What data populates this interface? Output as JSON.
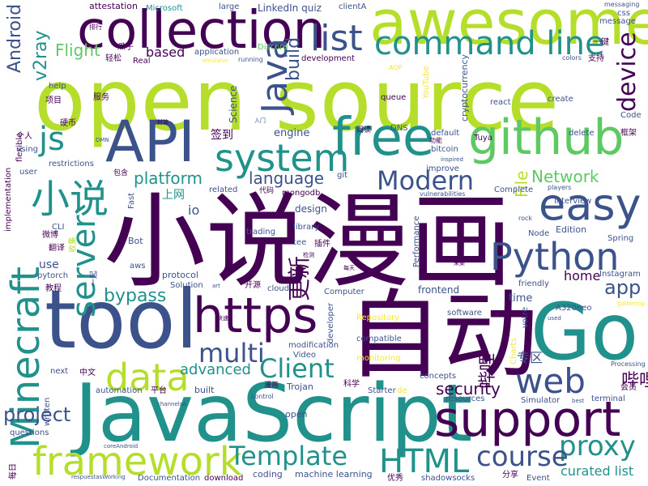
{
  "palette": {
    "dark_purple": "#440154",
    "indigo": "#3b528b",
    "teal": "#21918c",
    "green": "#5ec962",
    "lime": "#b5de2b",
    "yellow": "#fde725"
  },
  "words": {
    "open_source": "open source",
    "javascript": "JavaScript",
    "manhua": "小说漫画",
    "tool": "tool",
    "go": "Go",
    "zidong": "自动",
    "awesome": "awesome",
    "collection": "collection",
    "api": "API",
    "github": "github",
    "free": "free",
    "system": "system",
    "https": "https",
    "support": "support",
    "framework": "framework",
    "minecraft": "Minecraft",
    "python": "Python",
    "easy": "easy",
    "list": "list",
    "command_line": "command line",
    "web": "web",
    "data": "data",
    "proxy": "proxy",
    "template": "Template",
    "html": "HTML",
    "client": "Client",
    "multi": "multi",
    "course": "course",
    "server": "server",
    "java": "Java",
    "xiaoshuo": "小说",
    "modern": "Modern",
    "device": "device",
    "bypass": "bypass",
    "project": "project",
    "security": "security",
    "app": "app",
    "v2ray": "v2ray",
    "android": "Android",
    "flight": "Flight",
    "build": "build",
    "js": "js",
    "platform": "platform",
    "language": "language",
    "network": "Network",
    "gengxin": "更新",
    "advanced": "advanced",
    "curated_list": "curated list",
    "bilibili": "哔哩",
    "home": "home",
    "file": "File",
    "based": "based",
    "linkedin_quiz": "LinkedIn quiz",
    "zhuanqu": "专区",
    "engine": "engine",
    "qiandao": "签到",
    "shangwang": "上网",
    "time": "time",
    "use": "use",
    "microsoft": "Microsoft",
    "attestation": "attestation",
    "large": "large",
    "clienta": "clientA",
    "css": "css",
    "message": "message",
    "messaging": "messaging",
    "yijian": "一键",
    "zhichi": "支持",
    "colors": "colors",
    "discord": "Discord",
    "application": "application",
    "running": "running",
    "development": "development",
    "real": "Real",
    "emulator": "emulator",
    "aop": "AOP",
    "qingsong": "轻松",
    "guazi": "瓜子",
    "paihang": "排行",
    "fuwu": "服务",
    "xiangmu": "项目",
    "help": "help",
    "science": "Science",
    "queue": "queue",
    "youtube": "YouTube",
    "cryptocurrency": "cryptocurrency",
    "react": "react",
    "create": "create",
    "edition": "Edition",
    "code": "Code",
    "kuangjia": "框架",
    "delete": "delete",
    "tuya": "Tuya",
    "default": "default",
    "bitcoin": "bitcoin",
    "improve": "improve",
    "inspired": "inspired",
    "dns": "DNS",
    "yuedu": "阅读",
    "gongneng": "功能",
    "yingbi": "硬币",
    "geren": "个人",
    "dmn": "DMN",
    "flexible": "flexible",
    "implementation": "implementation",
    "restrictions": "restrictions",
    "using": "using",
    "user": "user",
    "baohan": "包含",
    "git": "git",
    "related": "related",
    "mongodb": "mongodb",
    "fast": "Fast",
    "io": "io",
    "design": "design",
    "complete": "Complete",
    "vulnerabilities": "vulnerabilities",
    "interview": "interview",
    "players": "players",
    "cli": "CLI",
    "weibo": "微博",
    "fanyi": "翻译",
    "bot": "Bot",
    "trading": "trading",
    "library": "library",
    "tee": "tee",
    "chajian": "插件",
    "performance": "Performance",
    "caiji": "采集",
    "meitian": "每天",
    "rock": "rock",
    "node": "Node",
    "spring": "Spring",
    "instagram": "Instagram",
    "friendly": "friendly",
    "pytorch": "pytorch",
    "jiaocheng": "教程",
    "aws": "aws",
    "protocol": "protocol",
    "solution": "Solution",
    "art": "art",
    "kaiyuan": "开源",
    "cloud": "cloud",
    "computer": "Computer",
    "frontend": "frontend",
    "yiqi": "一起",
    "developer": "developer",
    "software": "software",
    "repository": "Repository",
    "compatible": "compatible",
    "monitoring": "monitoring",
    "modification": "modification",
    "video": "Video",
    "votre": "votre",
    "a320neo": "A320neo",
    "used": "used",
    "gathering": "gathering",
    "processing": "Processing",
    "charts": "Charts",
    "next": "next",
    "zhongwen": "中文",
    "written": "written",
    "automation": "automation",
    "pingtai": "平台",
    "built": "built",
    "trojan": "Trojan",
    "manhua_small": "漫画",
    "kexue": "科学",
    "starter": "Starter",
    "de": "de",
    "concepts": "concepts",
    "resources": "resources",
    "simulator": "Simulator",
    "best": "best",
    "terminal": "terminal",
    "huiyuan": "会员",
    "control": "control",
    "open": "open",
    "questions": "questions",
    "channelsa": "channelsA",
    "coreandroid": "coreAndroid",
    "meiri": "每日",
    "respuestasworking": "respuestasWorking",
    "documentation": "Documentation",
    "download": "download",
    "coding": "coding",
    "machine_learning": "machine learning",
    "youxiu": "优秀",
    "shadowsocks": "shadowsocks",
    "fenxiang": "分享",
    "event": "Event",
    "rumen": "入门",
    "fengzhuang": "封装",
    "shouji": "收集",
    "daima": "代码",
    "jiance": "检测",
    "kuaisu": "快速"
  }
}
